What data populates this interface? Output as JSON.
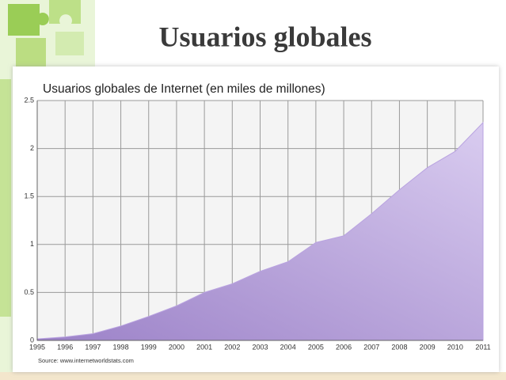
{
  "slide": {
    "title": "Usuarios globales"
  },
  "chart_data": {
    "type": "area",
    "title": "Usuarios globales de Internet (en miles de millones)",
    "source": "Source: www.internetworldstats.com",
    "x": [
      1995,
      1996,
      1997,
      1998,
      1999,
      2000,
      2001,
      2002,
      2003,
      2004,
      2005,
      2006,
      2007,
      2008,
      2009,
      2010,
      2011
    ],
    "values": [
      0.016,
      0.036,
      0.07,
      0.15,
      0.25,
      0.36,
      0.5,
      0.59,
      0.72,
      0.82,
      1.02,
      1.09,
      1.32,
      1.57,
      1.8,
      1.97,
      2.27
    ],
    "color": "#b9a3e0",
    "xlim": [
      1995,
      2011
    ],
    "xticks": [
      1995,
      1996,
      1997,
      1998,
      1999,
      2000,
      2001,
      2002,
      2003,
      2004,
      2005,
      2006,
      2007,
      2008,
      2009,
      2010,
      2011
    ],
    "ylim": [
      0,
      2.5
    ],
    "yticks": [
      0,
      0.5,
      1,
      1.5,
      2,
      2.5
    ],
    "grid": true
  }
}
